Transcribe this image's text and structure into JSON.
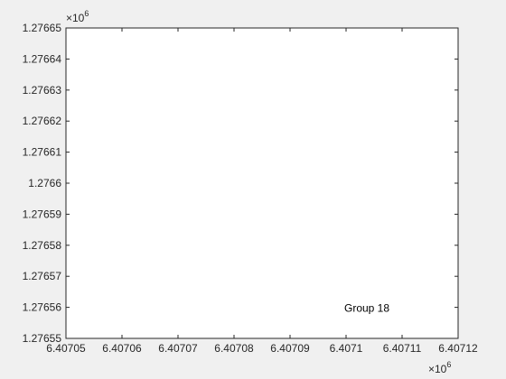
{
  "chart_data": {
    "type": "scatter",
    "title": "",
    "xlabel": "",
    "ylabel": "",
    "xlim": [
      6407050,
      6407120
    ],
    "ylim": [
      1276550,
      1276650
    ],
    "x_ticks": [
      6407050,
      6407060,
      6407070,
      6407080,
      6407090,
      6407100,
      6407110,
      6407120
    ],
    "x_tick_labels": [
      "6.40705",
      "6.40706",
      "6.40707",
      "6.40708",
      "6.40709",
      "6.4071",
      "6.40711",
      "6.40712"
    ],
    "y_ticks": [
      1276550,
      1276560,
      1276570,
      1276580,
      1276590,
      1276600,
      1276610,
      1276620,
      1276630,
      1276640,
      1276650
    ],
    "y_tick_labels": [
      "1.27655",
      "1.27656",
      "1.27657",
      "1.27658",
      "1.27659",
      "1.2766",
      "1.27661",
      "1.27662",
      "1.27663",
      "1.27664",
      "1.27665"
    ],
    "x_exponent": "×10",
    "x_exponent_power": "6",
    "y_exponent": "×10",
    "y_exponent_power": "6",
    "grid": false,
    "series": [],
    "annotations": [
      {
        "text": "Group 18",
        "x": 6407100,
        "y": 1276560
      }
    ],
    "colors": {
      "background": "#f0f0f0",
      "axes_background": "#ffffff",
      "axis": "#262626"
    }
  }
}
